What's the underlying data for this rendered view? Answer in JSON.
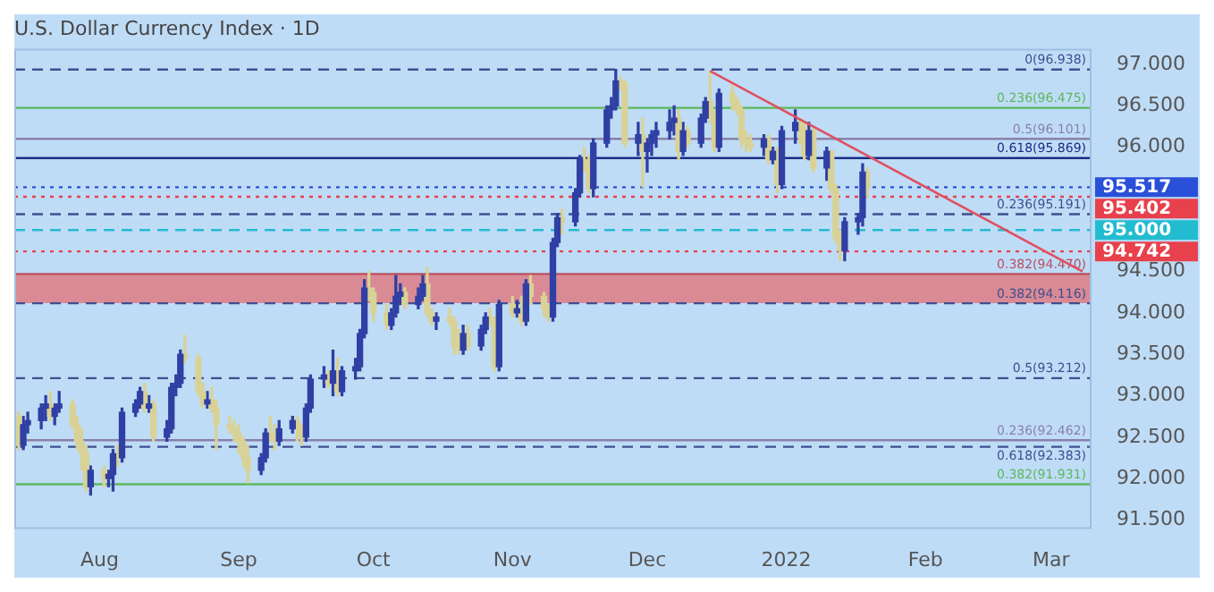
{
  "chart_data": {
    "type": "candlestick",
    "title": "U.S. Dollar Currency Index · 1D",
    "xlim": [
      "2021-07-13",
      "2022-03-10"
    ],
    "xticks": [
      {
        "value": "2021-08-01",
        "label": "Aug"
      },
      {
        "value": "2021-09-01",
        "label": "Sep"
      },
      {
        "value": "2021-10-01",
        "label": "Oct"
      },
      {
        "value": "2021-11-01",
        "label": "Nov"
      },
      {
        "value": "2021-12-01",
        "label": "Dec"
      },
      {
        "value": "2022-01-01",
        "label": "2022"
      },
      {
        "value": "2022-02-01",
        "label": "Feb"
      },
      {
        "value": "2022-03-01",
        "label": "Mar"
      }
    ],
    "ylim": [
      91.39,
      97.19
    ],
    "yticks": [
      {
        "value": 91.5,
        "label": "91.500"
      },
      {
        "value": 92,
        "label": "92.000"
      },
      {
        "value": 92.5,
        "label": "92.500"
      },
      {
        "value": 93,
        "label": "93.000"
      },
      {
        "value": 93.5,
        "label": "93.500"
      },
      {
        "value": 94,
        "label": "94.000"
      },
      {
        "value": 94.5,
        "label": "94.500"
      },
      {
        "value": 96,
        "label": "96.000"
      },
      {
        "value": 96.5,
        "label": "96.500"
      },
      {
        "value": 97,
        "label": "97.000"
      }
    ],
    "series": [
      {
        "color": "#2f3fa3",
        "x": [
          "2021-07-15",
          "2021-07-16",
          "2021-07-19",
          "2021-07-20",
          "2021-07-22",
          "2021-07-23",
          "2021-07-30",
          "2021-08-03",
          "2021-08-04",
          "2021-08-06",
          "2021-08-09",
          "2021-08-10",
          "2021-08-12",
          "2021-08-16",
          "2021-08-17",
          "2021-08-18",
          "2021-08-19",
          "2021-08-25",
          "2021-09-06",
          "2021-09-07",
          "2021-09-10",
          "2021-09-13",
          "2021-09-16",
          "2021-09-17",
          "2021-09-20",
          "2021-09-22",
          "2021-09-24",
          "2021-09-27",
          "2021-09-28",
          "2021-09-29",
          "2021-10-05",
          "2021-10-06",
          "2021-10-07",
          "2021-10-11",
          "2021-10-12",
          "2021-10-15",
          "2021-10-21",
          "2021-10-25",
          "2021-10-26",
          "2021-10-29",
          "2021-11-02",
          "2021-11-04",
          "2021-11-10",
          "2021-11-11",
          "2021-11-15",
          "2021-11-16",
          "2021-11-19",
          "2021-11-22",
          "2021-11-23",
          "2021-11-24",
          "2021-11-29",
          "2021-12-01",
          "2021-12-02",
          "2021-12-03",
          "2021-12-06",
          "2021-12-07",
          "2021-12-09",
          "2021-12-13",
          "2021-12-14",
          "2021-12-17",
          "2021-12-27",
          "2021-12-29",
          "2021-12-31",
          "2022-01-03",
          "2022-01-06",
          "2022-01-10",
          "2022-01-14",
          "2022-01-17",
          "2022-01-18"
        ],
        "ohlc": [
          [
            92.4,
            92.75,
            92.35,
            92.65
          ],
          [
            92.65,
            92.8,
            92.55,
            92.7
          ],
          [
            92.7,
            92.9,
            92.6,
            92.85
          ],
          [
            92.85,
            93.0,
            92.7,
            92.9
          ],
          [
            92.75,
            92.9,
            92.65,
            92.85
          ],
          [
            92.85,
            93.05,
            92.8,
            92.9
          ],
          [
            91.9,
            92.15,
            91.8,
            92.1
          ],
          [
            92.0,
            92.1,
            91.9,
            92.05
          ],
          [
            92.05,
            92.35,
            91.85,
            92.3
          ],
          [
            92.25,
            92.85,
            92.2,
            92.8
          ],
          [
            92.8,
            92.95,
            92.75,
            92.9
          ],
          [
            92.9,
            93.1,
            92.85,
            93.05
          ],
          [
            92.85,
            93.0,
            92.8,
            92.9
          ],
          [
            92.5,
            92.7,
            92.45,
            92.6
          ],
          [
            92.6,
            93.15,
            92.55,
            93.1
          ],
          [
            93.1,
            93.25,
            93.0,
            93.15
          ],
          [
            93.15,
            93.55,
            93.1,
            93.5
          ],
          [
            92.9,
            93.05,
            92.85,
            92.95
          ],
          [
            92.1,
            92.3,
            92.05,
            92.25
          ],
          [
            92.25,
            92.6,
            92.2,
            92.55
          ],
          [
            92.45,
            92.7,
            92.4,
            92.6
          ],
          [
            92.6,
            92.75,
            92.55,
            92.7
          ],
          [
            92.5,
            92.9,
            92.45,
            92.85
          ],
          [
            92.85,
            93.25,
            92.8,
            93.2
          ],
          [
            93.2,
            93.35,
            93.1,
            93.25
          ],
          [
            93.15,
            93.55,
            93.0,
            93.3
          ],
          [
            93.05,
            93.35,
            93.0,
            93.3
          ],
          [
            93.3,
            93.45,
            93.2,
            93.35
          ],
          [
            93.35,
            93.8,
            93.3,
            93.75
          ],
          [
            93.75,
            94.4,
            93.7,
            94.3
          ],
          [
            93.85,
            94.05,
            93.8,
            94.0
          ],
          [
            94.0,
            94.45,
            93.95,
            94.2
          ],
          [
            94.2,
            94.35,
            94.1,
            94.25
          ],
          [
            94.1,
            94.3,
            94.05,
            94.2
          ],
          [
            94.2,
            94.45,
            94.15,
            94.35
          ],
          [
            93.9,
            94.0,
            93.8,
            93.95
          ],
          [
            93.55,
            93.85,
            93.5,
            93.75
          ],
          [
            93.6,
            93.85,
            93.55,
            93.8
          ],
          [
            93.8,
            94.0,
            93.75,
            93.95
          ],
          [
            93.35,
            94.15,
            93.3,
            94.1
          ],
          [
            94.0,
            94.15,
            93.95,
            94.05
          ],
          [
            93.9,
            94.4,
            93.85,
            94.35
          ],
          [
            93.95,
            94.9,
            93.9,
            94.85
          ],
          [
            94.85,
            95.2,
            94.8,
            95.15
          ],
          [
            95.1,
            95.5,
            95.05,
            95.45
          ],
          [
            95.45,
            95.9,
            95.4,
            95.85
          ],
          [
            95.5,
            96.1,
            95.4,
            96.05
          ],
          [
            96.05,
            96.5,
            96.0,
            96.45
          ],
          [
            96.45,
            96.6,
            96.35,
            96.5
          ],
          [
            96.5,
            96.94,
            96.45,
            96.8
          ],
          [
            96.05,
            96.3,
            95.9,
            96.15
          ],
          [
            95.95,
            96.1,
            95.7,
            96.05
          ],
          [
            96.05,
            96.2,
            95.9,
            96.15
          ],
          [
            96.15,
            96.3,
            96.0,
            96.2
          ],
          [
            96.2,
            96.45,
            96.1,
            96.3
          ],
          [
            96.3,
            96.5,
            96.15,
            96.35
          ],
          [
            95.95,
            96.3,
            95.9,
            96.2
          ],
          [
            96.05,
            96.4,
            96.0,
            96.35
          ],
          [
            96.35,
            96.6,
            96.3,
            96.55
          ],
          [
            96.0,
            96.7,
            95.95,
            96.65
          ],
          [
            96.0,
            96.15,
            95.9,
            96.1
          ],
          [
            95.85,
            96.0,
            95.8,
            95.95
          ],
          [
            95.55,
            96.25,
            95.5,
            96.2
          ],
          [
            96.2,
            96.45,
            96.05,
            96.3
          ],
          [
            95.9,
            96.3,
            95.85,
            96.2
          ],
          [
            95.75,
            96.0,
            95.6,
            95.95
          ],
          [
            94.75,
            95.15,
            94.63,
            95.1
          ],
          [
            95.1,
            95.2,
            94.95,
            95.15
          ],
          [
            95.15,
            95.8,
            95.05,
            95.7
          ]
        ]
      },
      {
        "color": "#d8d296",
        "x": [
          "2021-07-14",
          "2021-07-21",
          "2021-07-26",
          "2021-07-27",
          "2021-07-28",
          "2021-07-29",
          "2021-08-02",
          "2021-08-05",
          "2021-08-11",
          "2021-08-13",
          "2021-08-20",
          "2021-08-23",
          "2021-08-24",
          "2021-08-26",
          "2021-08-27",
          "2021-08-30",
          "2021-08-31",
          "2021-09-01",
          "2021-09-02",
          "2021-09-03",
          "2021-09-08",
          "2021-09-09",
          "2021-09-14",
          "2021-09-15",
          "2021-09-21",
          "2021-09-23",
          "2021-09-30",
          "2021-10-01",
          "2021-10-04",
          "2021-10-08",
          "2021-10-13",
          "2021-10-14",
          "2021-10-18",
          "2021-10-19",
          "2021-10-20",
          "2021-10-22",
          "2021-10-27",
          "2021-10-28",
          "2021-11-01",
          "2021-11-03",
          "2021-11-05",
          "2021-11-08",
          "2021-11-09",
          "2021-11-12",
          "2021-11-17",
          "2021-11-18",
          "2021-11-25",
          "2021-11-26",
          "2021-11-30",
          "2021-12-08",
          "2021-12-10",
          "2021-12-15",
          "2021-12-16",
          "2021-12-20",
          "2021-12-21",
          "2021-12-22",
          "2021-12-23",
          "2021-12-24",
          "2021-12-28",
          "2021-12-30",
          "2022-01-04",
          "2022-01-05",
          "2022-01-07",
          "2022-01-11",
          "2022-01-12",
          "2022-01-13",
          "2022-01-19"
        ],
        "ohlc": [
          [
            92.75,
            92.8,
            92.35,
            92.4
          ],
          [
            92.9,
            93.05,
            92.7,
            92.75
          ],
          [
            92.9,
            92.95,
            92.6,
            92.65
          ],
          [
            92.65,
            92.75,
            92.35,
            92.45
          ],
          [
            92.45,
            92.6,
            92.1,
            92.3
          ],
          [
            92.3,
            92.4,
            91.85,
            91.9
          ],
          [
            92.1,
            92.15,
            91.9,
            92.0
          ],
          [
            92.3,
            92.4,
            92.15,
            92.25
          ],
          [
            93.05,
            93.15,
            92.8,
            92.85
          ],
          [
            92.9,
            92.95,
            92.45,
            92.5
          ],
          [
            93.5,
            93.73,
            93.4,
            93.45
          ],
          [
            93.45,
            93.5,
            93.0,
            93.05
          ],
          [
            93.05,
            93.15,
            92.85,
            92.9
          ],
          [
            92.95,
            93.1,
            92.8,
            92.85
          ],
          [
            92.85,
            92.95,
            92.35,
            92.65
          ],
          [
            92.65,
            92.75,
            92.55,
            92.6
          ],
          [
            92.6,
            92.7,
            92.45,
            92.55
          ],
          [
            92.55,
            92.65,
            92.3,
            92.45
          ],
          [
            92.45,
            92.5,
            92.15,
            92.25
          ],
          [
            92.25,
            92.4,
            91.95,
            92.1
          ],
          [
            92.55,
            92.75,
            92.45,
            92.5
          ],
          [
            92.5,
            92.65,
            92.35,
            92.45
          ],
          [
            92.7,
            92.75,
            92.45,
            92.6
          ],
          [
            92.6,
            92.65,
            92.4,
            92.5
          ],
          [
            93.25,
            93.3,
            93.1,
            93.15
          ],
          [
            93.3,
            93.45,
            93.0,
            93.05
          ],
          [
            94.3,
            94.5,
            94.15,
            94.25
          ],
          [
            94.25,
            94.3,
            93.9,
            94.0
          ],
          [
            94.0,
            94.1,
            93.8,
            93.85
          ],
          [
            94.25,
            94.3,
            94.05,
            94.1
          ],
          [
            94.35,
            94.55,
            93.95,
            94.0
          ],
          [
            94.0,
            94.05,
            93.85,
            93.9
          ],
          [
            93.95,
            94.05,
            93.85,
            93.9
          ],
          [
            93.9,
            93.95,
            93.5,
            93.6
          ],
          [
            93.6,
            93.8,
            93.5,
            93.55
          ],
          [
            93.75,
            93.85,
            93.55,
            93.6
          ],
          [
            93.95,
            94.05,
            93.85,
            93.9
          ],
          [
            93.9,
            93.95,
            93.3,
            93.35
          ],
          [
            94.1,
            94.2,
            93.95,
            94.0
          ],
          [
            94.05,
            94.2,
            93.85,
            93.9
          ],
          [
            94.35,
            94.45,
            94.1,
            94.2
          ],
          [
            94.2,
            94.25,
            93.95,
            94.05
          ],
          [
            94.05,
            94.1,
            93.9,
            93.95
          ],
          [
            95.15,
            95.25,
            94.95,
            95.1
          ],
          [
            95.85,
            96.0,
            95.7,
            95.8
          ],
          [
            95.8,
            95.9,
            95.45,
            95.5
          ],
          [
            96.8,
            96.85,
            96.7,
            96.78
          ],
          [
            96.78,
            96.8,
            96.0,
            96.05
          ],
          [
            96.15,
            96.35,
            95.52,
            95.95
          ],
          [
            96.35,
            96.45,
            95.85,
            95.95
          ],
          [
            96.2,
            96.25,
            96.0,
            96.05
          ],
          [
            96.55,
            96.92,
            96.3,
            96.4
          ],
          [
            96.4,
            96.45,
            95.95,
            96.0
          ],
          [
            96.65,
            96.75,
            96.45,
            96.55
          ],
          [
            96.55,
            96.6,
            96.4,
            96.45
          ],
          [
            96.45,
            96.5,
            96.0,
            96.1
          ],
          [
            96.1,
            96.2,
            95.95,
            96.05
          ],
          [
            96.05,
            96.15,
            95.95,
            96.0
          ],
          [
            96.1,
            96.15,
            95.8,
            95.85
          ],
          [
            95.95,
            96.0,
            95.45,
            95.55
          ],
          [
            96.3,
            96.35,
            96.05,
            96.25
          ],
          [
            96.25,
            96.3,
            95.85,
            95.9
          ],
          [
            96.2,
            96.25,
            95.7,
            95.75
          ],
          [
            95.95,
            95.95,
            95.45,
            95.5
          ],
          [
            95.5,
            95.55,
            94.85,
            94.9
          ],
          [
            94.9,
            95.0,
            94.63,
            94.75
          ],
          [
            95.7,
            95.75,
            95.4,
            95.5
          ]
        ]
      },
      {
        "type": "line",
        "color": "#e0505f",
        "x": [
          "2021-12-15",
          "2022-03-08"
        ],
        "values": [
          96.92,
          94.5
        ]
      }
    ],
    "bands": [
      {
        "axis": "y",
        "from": 94.116,
        "to": 94.47,
        "color": "#d98a95"
      }
    ],
    "ref_lines": [
      {
        "axis": "y",
        "value": 96.938,
        "label": "0(96.938)",
        "color": "#3f4f8f",
        "line_style": "dashed"
      },
      {
        "axis": "y",
        "value": 96.475,
        "label": "0.236(96.475)",
        "color": "#5cb85c",
        "line_style": "solid"
      },
      {
        "axis": "y",
        "value": 96.101,
        "label": "0.5(96.101)",
        "color": "#8a80aa",
        "line_style": "solid"
      },
      {
        "axis": "y",
        "value": 95.869,
        "label": "0.618(95.869)",
        "color": "#1c2c86",
        "line_style": "solid"
      },
      {
        "axis": "y",
        "value": 95.517,
        "color": "#2950d8",
        "line_style": "dotted"
      },
      {
        "axis": "y",
        "value": 95.402,
        "color": "#e8404c",
        "line_style": "dotted"
      },
      {
        "axis": "y",
        "value": 95.191,
        "label": "0.236(95.191)",
        "color": "#3f4f8f",
        "line_style": "dashed"
      },
      {
        "axis": "y",
        "value": 95.0,
        "color": "#22bcd0",
        "line_style": "dashed"
      },
      {
        "axis": "y",
        "value": 94.742,
        "color": "#e8404c",
        "line_style": "dotted"
      },
      {
        "axis": "y",
        "value": 94.47,
        "label": "0.382(94.470)",
        "color": "#b8505e",
        "line_style": "solid"
      },
      {
        "axis": "y",
        "value": 94.116,
        "label": "0.382(94.116)",
        "color": "#3f4f8f",
        "line_style": "dashed"
      },
      {
        "axis": "y",
        "value": 93.212,
        "label": "0.5(93.212)",
        "color": "#3f4f8f",
        "line_style": "dashed"
      },
      {
        "axis": "y",
        "value": 92.462,
        "label": "0.236(92.462)",
        "color": "#8a80aa",
        "line_style": "solid"
      },
      {
        "axis": "y",
        "value": 92.383,
        "label": "0.618(92.383)",
        "color": "#3f4f8f",
        "line_style": "dashed"
      },
      {
        "axis": "y",
        "value": 91.931,
        "label": "0.382(91.931)",
        "color": "#5cb85c",
        "line_style": "solid"
      }
    ],
    "annotations": [
      "95.517",
      "95.402",
      "95.000",
      "94.742"
    ]
  }
}
